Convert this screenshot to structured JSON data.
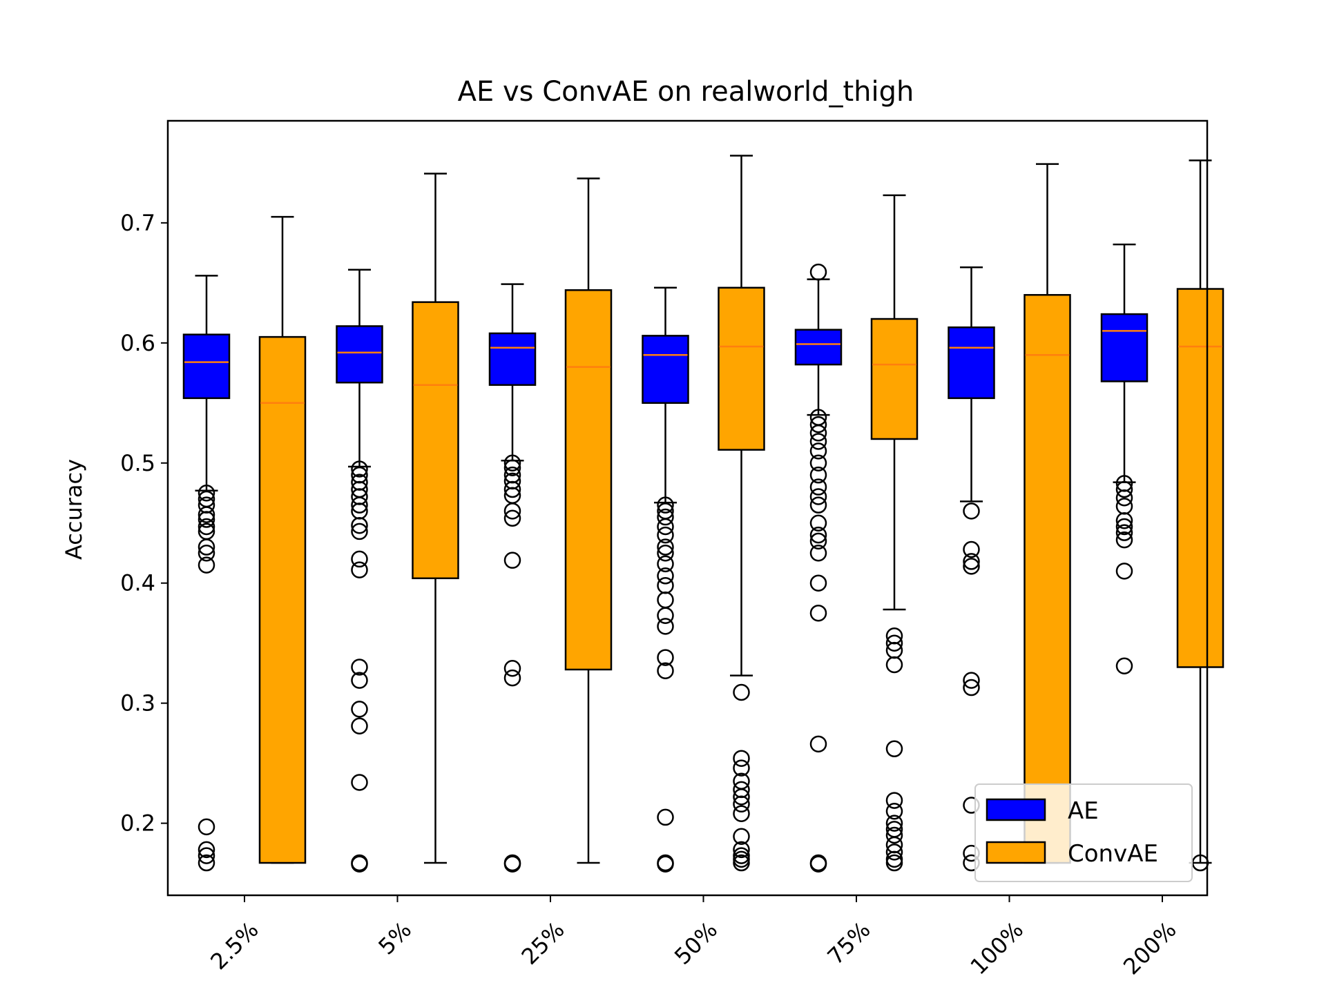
{
  "chart_data": {
    "type": "box",
    "title": "AE vs ConvAE on realworld_thigh",
    "xlabel": "",
    "ylabel": "Accuracy",
    "categories": [
      "2.5%",
      "5%",
      "25%",
      "50%",
      "75%",
      "100%",
      "200%"
    ],
    "ylim": [
      0.14,
      0.785
    ],
    "yticks": [
      0.2,
      0.3,
      0.4,
      0.5,
      0.6,
      0.7
    ],
    "grid": false,
    "legend_position": "lower-right",
    "series": [
      {
        "name": "AE",
        "color": "#0000ff",
        "boxes": [
          {
            "whisker_low": 0.477,
            "q1": 0.554,
            "median": 0.584,
            "q3": 0.607,
            "whisker_high": 0.656,
            "outliers": [
              0.475,
              0.47,
              0.465,
              0.457,
              0.453,
              0.447,
              0.443,
              0.43,
              0.425,
              0.415,
              0.197,
              0.178,
              0.173,
              0.167
            ]
          },
          {
            "whisker_low": 0.497,
            "q1": 0.567,
            "median": 0.592,
            "q3": 0.614,
            "whisker_high": 0.661,
            "outliers": [
              0.495,
              0.49,
              0.484,
              0.478,
              0.472,
              0.465,
              0.46,
              0.448,
              0.443,
              0.42,
              0.411,
              0.33,
              0.319,
              0.295,
              0.281,
              0.234,
              0.167,
              0.166
            ]
          },
          {
            "whisker_low": 0.502,
            "q1": 0.565,
            "median": 0.596,
            "q3": 0.608,
            "whisker_high": 0.649,
            "outliers": [
              0.5,
              0.496,
              0.49,
              0.485,
              0.478,
              0.473,
              0.46,
              0.454,
              0.419,
              0.329,
              0.321,
              0.167,
              0.166
            ]
          },
          {
            "whisker_low": 0.467,
            "q1": 0.55,
            "median": 0.59,
            "q3": 0.606,
            "whisker_high": 0.646,
            "outliers": [
              0.465,
              0.46,
              0.455,
              0.447,
              0.44,
              0.43,
              0.425,
              0.416,
              0.406,
              0.398,
              0.386,
              0.373,
              0.364,
              0.338,
              0.327,
              0.205,
              0.167,
              0.166
            ]
          },
          {
            "whisker_low": 0.54,
            "q1": 0.582,
            "median": 0.599,
            "q3": 0.611,
            "whisker_high": 0.653,
            "outliers": [
              0.659,
              0.538,
              0.532,
              0.525,
              0.518,
              0.51,
              0.5,
              0.49,
              0.48,
              0.472,
              0.465,
              0.45,
              0.44,
              0.435,
              0.425,
              0.4,
              0.375,
              0.266,
              0.167,
              0.166
            ]
          },
          {
            "whisker_low": 0.468,
            "q1": 0.554,
            "median": 0.596,
            "q3": 0.613,
            "whisker_high": 0.663,
            "outliers": [
              0.46,
              0.428,
              0.418,
              0.414,
              0.319,
              0.313,
              0.215,
              0.175,
              0.167
            ]
          },
          {
            "whisker_low": 0.484,
            "q1": 0.568,
            "median": 0.61,
            "q3": 0.624,
            "whisker_high": 0.682,
            "outliers": [
              0.483,
              0.478,
              0.471,
              0.464,
              0.452,
              0.447,
              0.442,
              0.436,
              0.41,
              0.331
            ]
          }
        ]
      },
      {
        "name": "ConvAE",
        "color": "#ffa500",
        "boxes": [
          {
            "whisker_low": 0.167,
            "q1": 0.167,
            "median": 0.55,
            "q3": 0.605,
            "whisker_high": 0.705,
            "outliers": []
          },
          {
            "whisker_low": 0.167,
            "q1": 0.404,
            "median": 0.565,
            "q3": 0.634,
            "whisker_high": 0.741,
            "outliers": []
          },
          {
            "whisker_low": 0.167,
            "q1": 0.328,
            "median": 0.58,
            "q3": 0.644,
            "whisker_high": 0.737,
            "outliers": []
          },
          {
            "whisker_low": 0.323,
            "q1": 0.511,
            "median": 0.597,
            "q3": 0.646,
            "whisker_high": 0.756,
            "outliers": [
              0.309,
              0.254,
              0.246,
              0.235,
              0.228,
              0.222,
              0.216,
              0.208,
              0.189,
              0.178,
              0.173,
              0.17,
              0.167
            ]
          },
          {
            "whisker_low": 0.378,
            "q1": 0.52,
            "median": 0.582,
            "q3": 0.62,
            "whisker_high": 0.723,
            "outliers": [
              0.356,
              0.35,
              0.344,
              0.332,
              0.262,
              0.219,
              0.21,
              0.2,
              0.195,
              0.19,
              0.182,
              0.176,
              0.17,
              0.167
            ]
          },
          {
            "whisker_low": 0.167,
            "q1": 0.167,
            "median": 0.59,
            "q3": 0.64,
            "whisker_high": 0.749,
            "outliers": []
          },
          {
            "whisker_low": 0.167,
            "q1": 0.33,
            "median": 0.597,
            "q3": 0.645,
            "whisker_high": 0.752,
            "outliers": [
              0.167
            ]
          }
        ]
      }
    ]
  }
}
